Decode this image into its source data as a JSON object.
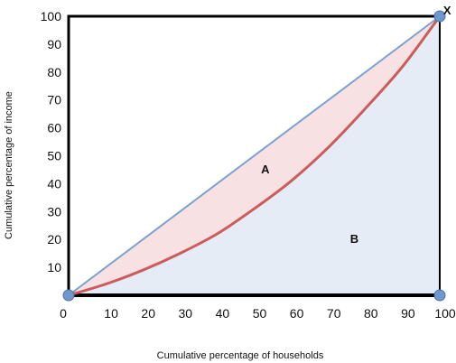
{
  "chart_data": {
    "type": "area",
    "xlabel": "Cumulative percentage of households",
    "ylabel": "Cumulative  percentage of income",
    "xlim": [
      0,
      100
    ],
    "ylim": [
      0,
      100
    ],
    "x_ticks": [
      "0",
      "10",
      "20",
      "30",
      "40",
      "50",
      "60",
      "70",
      "80",
      "90",
      "100"
    ],
    "y_ticks": [
      "10",
      "20",
      "30",
      "40",
      "50",
      "60",
      "70",
      "80",
      "90",
      "100"
    ],
    "series": [
      {
        "values": [
          [
            0,
            0
          ],
          [
            100,
            100
          ]
        ]
      },
      {
        "values": [
          [
            0,
            0
          ],
          [
            10,
            4
          ],
          [
            20,
            9
          ],
          [
            30,
            15
          ],
          [
            40,
            22
          ],
          [
            50,
            31
          ],
          [
            60,
            41
          ],
          [
            70,
            53
          ],
          [
            80,
            67
          ],
          [
            90,
            82
          ],
          [
            100,
            100
          ]
        ]
      }
    ],
    "annotations": [
      {
        "text": "A",
        "x": 53,
        "y": 45
      },
      {
        "text": "B",
        "x": 77,
        "y": 20
      },
      {
        "text": "X",
        "x": 102,
        "y": 102
      }
    ],
    "grid": false,
    "colors": {
      "equality_line": "#7ba2cf",
      "lorenz_curve": "#cc5c5c",
      "area_a_fill": "#f8e1e3",
      "area_b_fill": "#e6ecf5",
      "frame": "#000000",
      "marker": "#6f97cd"
    }
  }
}
